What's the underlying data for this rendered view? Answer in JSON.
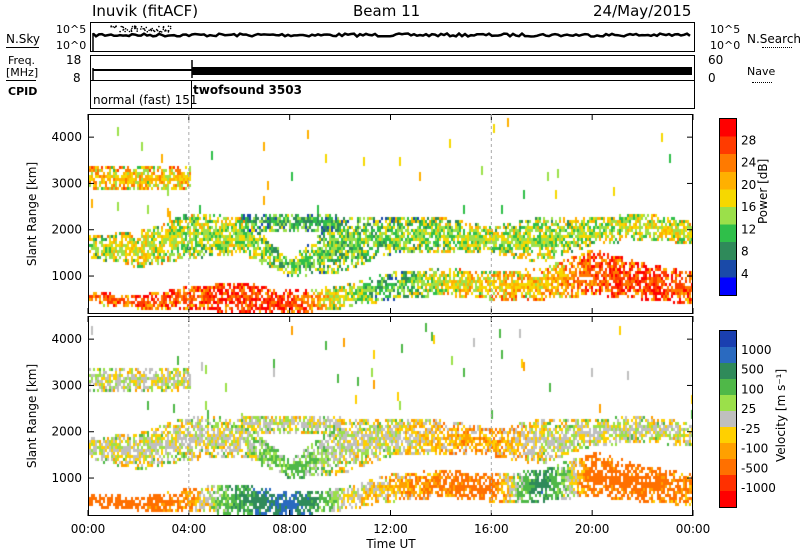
{
  "header": {
    "station": "Inuvik (fitACF)",
    "beam": "Beam 11",
    "date": "24/May/2015"
  },
  "labels": {
    "nsky": "N.Sky",
    "nsearch": "N.Search",
    "freq_top": "Freq.",
    "freq_unit": "[MHz]",
    "nave": "Nave",
    "cpid": "CPID",
    "nsky_top_tick": "10^5",
    "nsky_bot_tick": "10^0",
    "freq_ticks": [
      "18",
      "8"
    ],
    "nave_ticks": [
      "60",
      "0"
    ],
    "cpid_mode_1": "normal (fast) 151",
    "cpid_mode_2": "twofsound 3503"
  },
  "axes": {
    "ylabel": "Slant Range [km]",
    "xlabel": "Time UT",
    "y_ticks": [
      "1000",
      "2000",
      "3000",
      "4000"
    ],
    "x_ticks": [
      "00:00",
      "04:00",
      "08:00",
      "12:00",
      "16:00",
      "20:00",
      "00:00"
    ]
  },
  "colorbar_power": {
    "label": "Power [dB]",
    "ticks": [
      "28",
      "24",
      "20",
      "16",
      "12",
      "8",
      "4"
    ],
    "colors": [
      "#ff0000",
      "#ff3b00",
      "#ff7a00",
      "#ffb000",
      "#f6d800",
      "#9be04a",
      "#2fbf4a",
      "#2f8a5a",
      "#1a4aa8",
      "#0000ff"
    ]
  },
  "colorbar_velocity": {
    "label": "Velocity [m s⁻¹]",
    "ticks": [
      "1000",
      "500",
      "100",
      "25",
      "-25",
      "-100",
      "-500",
      "-1000"
    ],
    "colors": [
      "#1a3fb0",
      "#2a6ac0",
      "#2f8a5a",
      "#4fb848",
      "#9be04a",
      "#bfbfbf",
      "#ffd000",
      "#ffa000",
      "#ff7000",
      "#ff3000",
      "#ff0000"
    ]
  },
  "chart_data": [
    {
      "type": "heatmap",
      "title": "Power",
      "xlabel": "Time UT",
      "ylabel": "Slant Range [km]",
      "x_range": [
        "00:00",
        "24:00"
      ],
      "y_range": [
        180,
        4500
      ],
      "colorbar": {
        "label": "Power [dB]",
        "range": [
          0,
          30
        ]
      },
      "range_profiles_km": [
        {
          "time": "00:00",
          "bands": [
            [
              400,
              700,
              22
            ],
            [
              1400,
              1900,
              14
            ]
          ]
        },
        {
          "time": "02:00",
          "bands": [
            [
              300,
              600,
              24
            ],
            [
              1200,
              2000,
              16
            ],
            [
              2900,
              3400,
              18
            ]
          ]
        },
        {
          "time": "04:00",
          "bands": [
            [
              300,
              800,
              24
            ],
            [
              1400,
              2400,
              14
            ]
          ]
        },
        {
          "time": "06:00",
          "bands": [
            [
              200,
              900,
              26
            ],
            [
              1500,
              2300,
              14
            ]
          ]
        },
        {
          "time": "08:00",
          "bands": [
            [
              200,
              700,
              26
            ],
            [
              1000,
              1400,
              12
            ],
            [
              2000,
              2400,
              10
            ]
          ]
        },
        {
          "time": "10:00",
          "bands": [
            [
              300,
              800,
              14
            ],
            [
              1100,
              2300,
              12
            ]
          ]
        },
        {
          "time": "12:00",
          "bands": [
            [
              500,
              1100,
              10
            ],
            [
              1500,
              2300,
              12
            ]
          ]
        },
        {
          "time": "14:00",
          "bands": [
            [
              600,
              1200,
              16
            ],
            [
              1500,
              2300,
              14
            ]
          ]
        },
        {
          "time": "16:00",
          "bands": [
            [
              500,
              1100,
              18
            ],
            [
              1500,
              2100,
              14
            ]
          ]
        },
        {
          "time": "18:00",
          "bands": [
            [
              500,
              1200,
              18
            ],
            [
              1300,
              2300,
              14
            ]
          ]
        },
        {
          "time": "20:00",
          "bands": [
            [
              600,
              1600,
              24
            ],
            [
              1700,
              2300,
              14
            ]
          ]
        },
        {
          "time": "22:00",
          "bands": [
            [
              500,
              1300,
              26
            ],
            [
              1800,
              2400,
              16
            ]
          ]
        },
        {
          "time": "24:00",
          "bands": [
            [
              400,
              1100,
              24
            ],
            [
              1700,
              2200,
              16
            ]
          ]
        }
      ]
    },
    {
      "type": "heatmap",
      "title": "Velocity",
      "xlabel": "Time UT",
      "ylabel": "Slant Range [km]",
      "x_range": [
        "00:00",
        "24:00"
      ],
      "y_range": [
        180,
        4500
      ],
      "colorbar": {
        "label": "Velocity [m s⁻¹]",
        "range": [
          -1000,
          1000
        ]
      },
      "range_profiles_km": [
        {
          "time": "00:00",
          "bands": [
            [
              400,
              700,
              -200
            ],
            [
              1400,
              1900,
              0
            ]
          ]
        },
        {
          "time": "02:00",
          "bands": [
            [
              300,
              600,
              -150
            ],
            [
              1200,
              2000,
              0
            ],
            [
              2900,
              3400,
              0
            ]
          ]
        },
        {
          "time": "04:00",
          "bands": [
            [
              300,
              800,
              -100
            ],
            [
              1400,
              2400,
              0
            ]
          ]
        },
        {
          "time": "06:00",
          "bands": [
            [
              200,
              900,
              150
            ],
            [
              1500,
              2300,
              0
            ]
          ]
        },
        {
          "time": "08:00",
          "bands": [
            [
              200,
              700,
              300
            ],
            [
              1000,
              1400,
              100
            ],
            [
              2000,
              2400,
              0
            ]
          ]
        },
        {
          "time": "10:00",
          "bands": [
            [
              300,
              800,
              0
            ],
            [
              1100,
              2300,
              0
            ]
          ]
        },
        {
          "time": "12:00",
          "bands": [
            [
              500,
              1100,
              -50
            ],
            [
              1500,
              2300,
              0
            ]
          ]
        },
        {
          "time": "14:00",
          "bands": [
            [
              600,
              1200,
              -120
            ],
            [
              1500,
              2300,
              -50
            ]
          ]
        },
        {
          "time": "16:00",
          "bands": [
            [
              500,
              1100,
              -150
            ],
            [
              1500,
              2100,
              -80
            ]
          ]
        },
        {
          "time": "18:00",
          "bands": [
            [
              500,
              1200,
              200
            ],
            [
              1300,
              2300,
              0
            ]
          ]
        },
        {
          "time": "20:00",
          "bands": [
            [
              600,
              1600,
              -150
            ],
            [
              1700,
              2300,
              0
            ]
          ]
        },
        {
          "time": "22:00",
          "bands": [
            [
              500,
              1300,
              -150
            ],
            [
              1800,
              2400,
              0
            ]
          ]
        },
        {
          "time": "24:00",
          "bands": [
            [
              400,
              1100,
              -100
            ],
            [
              1700,
              2200,
              0
            ]
          ]
        }
      ]
    }
  ]
}
